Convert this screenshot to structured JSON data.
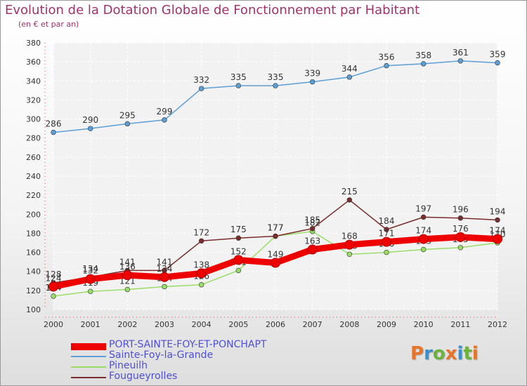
{
  "header": {
    "title": "Evolution de la Dotation Globale de Fonctionnement par Habitant",
    "subtitle": "(en € et par an)"
  },
  "logo": {
    "text": "Proxiti",
    "colors": [
      "#e8742a",
      "#3a8fd0",
      "#6cb33e",
      "#e8742a",
      "#3a8fd0",
      "#6cb33e",
      "#e8742a"
    ]
  },
  "chart_data": {
    "type": "line",
    "title": "Evolution de la Dotation Globale de Fonctionnement par Habitant",
    "subtitle": "(en € et par an)",
    "xlabel": "",
    "ylabel": "",
    "x": [
      "2000",
      "2001",
      "2002",
      "2003",
      "2004",
      "2005",
      "2006",
      "2007",
      "2008",
      "2009",
      "2010",
      "2011",
      "2012"
    ],
    "ylim": [
      100,
      380
    ],
    "yticks": [
      "100",
      "120",
      "140",
      "160",
      "180",
      "200",
      "220",
      "240",
      "260",
      "280",
      "300",
      "320",
      "340",
      "360",
      "380"
    ],
    "grid": true,
    "legend_position": "bottom-left",
    "series": [
      {
        "name": "Sainte-Foy-la-Grande",
        "color": "#5b9fd6",
        "values": [
          286,
          290,
          295,
          299,
          332,
          335,
          335,
          339,
          344,
          356,
          358,
          361,
          359
        ]
      },
      {
        "name": "Pineuilh",
        "color": "#99dd66",
        "values": [
          114,
          119,
          121,
          124,
          126,
          141,
          177,
          182,
          158,
          160,
          163,
          165,
          170
        ]
      },
      {
        "name": "Fougueyrolles",
        "color": "#7a2d2d",
        "values": [
          128,
          134,
          141,
          141,
          172,
          175,
          177,
          185,
          215,
          184,
          197,
          196,
          194
        ]
      },
      {
        "name": "PORT-SAINTE-FOY-ET-PONCHAPT",
        "color": "#ee0000",
        "values": [
          124,
          132,
          136,
          134,
          138,
          152,
          149,
          163,
          168,
          171,
          174,
          176,
          174
        ]
      }
    ],
    "legend": [
      "PORT-SAINTE-FOY-ET-PONCHAPT",
      "Sainte-Foy-la-Grande",
      "Pineuilh",
      "Fougueyrolles"
    ]
  }
}
